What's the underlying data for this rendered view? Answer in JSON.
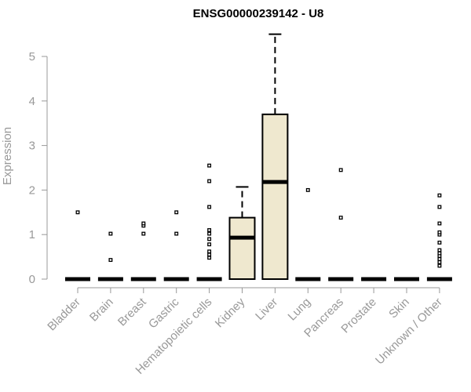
{
  "chart_data": {
    "type": "box",
    "title": "ENSG00000239142 - U8",
    "xlabel": "",
    "ylabel": "Expression",
    "ylim": [
      0,
      5.5
    ],
    "yticks": [
      0,
      1,
      2,
      3,
      4,
      5
    ],
    "box_fill": "#efe8cf",
    "categories": [
      "Bladder",
      "Brain",
      "Breast",
      "Gastric",
      "Hematopoietic cells",
      "Kidney",
      "Liver",
      "Lung",
      "Pancreas",
      "Prostate",
      "Skin",
      "Unknown / Other"
    ],
    "boxes": [
      {
        "q1": 0,
        "median": 0,
        "q3": 0,
        "whisker_low": 0,
        "whisker_high": 0,
        "outliers": [
          1.5
        ]
      },
      {
        "q1": 0,
        "median": 0,
        "q3": 0,
        "whisker_low": 0,
        "whisker_high": 0,
        "outliers": [
          0.43,
          1.02
        ]
      },
      {
        "q1": 0,
        "median": 0,
        "q3": 0,
        "whisker_low": 0,
        "whisker_high": 0,
        "outliers": [
          1.02,
          1.2,
          1.25
        ]
      },
      {
        "q1": 0,
        "median": 0,
        "q3": 0,
        "whisker_low": 0,
        "whisker_high": 0,
        "outliers": [
          1.02,
          1.5
        ]
      },
      {
        "q1": 0,
        "median": 0,
        "q3": 0,
        "whisker_low": 0,
        "whisker_high": 0,
        "outliers": [
          0.48,
          0.55,
          0.62,
          0.78,
          0.9,
          1.02,
          1.1,
          1.62,
          2.2,
          2.55
        ]
      },
      {
        "q1": 0,
        "median": 0.93,
        "q3": 1.38,
        "whisker_low": 0,
        "whisker_high": 2.07,
        "outliers": []
      },
      {
        "q1": 0,
        "median": 2.18,
        "q3": 3.7,
        "whisker_low": 0,
        "whisker_high": 5.5,
        "outliers": []
      },
      {
        "q1": 0,
        "median": 0,
        "q3": 0,
        "whisker_low": 0,
        "whisker_high": 0,
        "outliers": [
          2.0
        ]
      },
      {
        "q1": 0,
        "median": 0,
        "q3": 0,
        "whisker_low": 0,
        "whisker_high": 0,
        "outliers": [
          1.38,
          2.45
        ]
      },
      {
        "q1": 0,
        "median": 0,
        "q3": 0,
        "whisker_low": 0,
        "whisker_high": 0,
        "outliers": []
      },
      {
        "q1": 0,
        "median": 0,
        "q3": 0,
        "whisker_low": 0,
        "whisker_high": 0,
        "outliers": []
      },
      {
        "q1": 0,
        "median": 0,
        "q3": 0,
        "whisker_low": 0,
        "whisker_high": 0,
        "outliers": [
          0.3,
          0.38,
          0.45,
          0.52,
          0.58,
          0.65,
          0.82,
          1.0,
          1.05,
          1.25,
          1.62,
          1.88
        ]
      }
    ]
  }
}
